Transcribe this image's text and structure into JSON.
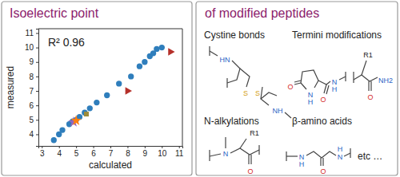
{
  "chart_data": {
    "type": "scatter",
    "title": "Isoelectric point",
    "x_label": "calculated",
    "y_label": "measured",
    "annotations": [
      "R² 0.96"
    ],
    "xlim": [
      2.8,
      11.2
    ],
    "xticks": [
      3,
      4,
      5,
      6,
      7,
      8,
      9,
      10,
      11
    ],
    "ylim": [
      3.2,
      11.3
    ],
    "yticks": [
      4,
      5,
      6,
      7,
      8,
      9,
      10,
      11
    ],
    "series": [
      {
        "color": "#2f7ebc",
        "marker": "circle",
        "x": [
          3.7,
          4.0,
          4.2,
          4.6,
          4.8,
          5.0,
          5.2,
          5.5,
          5.8,
          6.2,
          6.8,
          7.5,
          8.2,
          8.7,
          9.0,
          9.3,
          9.5,
          9.7,
          10.0
        ],
        "values": [
          3.6,
          4.0,
          4.3,
          4.7,
          4.9,
          5.0,
          5.2,
          5.5,
          5.8,
          6.2,
          6.7,
          7.5,
          8.0,
          8.7,
          9.0,
          9.4,
          9.6,
          9.9,
          10.0
        ]
      },
      {
        "color": "#b5302a",
        "marker": "triangle-right",
        "x": [
          8.0,
          10.5
        ],
        "values": [
          7.0,
          9.7
        ]
      },
      {
        "color": "#9467bd",
        "marker": "star",
        "x": [
          4.85
        ],
        "values": [
          4.85
        ]
      },
      {
        "color": "#ff7f0e",
        "marker": "star",
        "x": [
          5.0
        ],
        "values": [
          4.95
        ]
      },
      {
        "color": "#9c8b3b",
        "marker": "square",
        "x": [
          5.6
        ],
        "values": [
          5.4
        ]
      }
    ]
  },
  "panel": {
    "title": "of modified peptides",
    "structures": [
      {
        "title": "Cystine bonds",
        "atoms": [
          "HN",
          "S",
          "S",
          "NH"
        ]
      },
      {
        "title": "Termini modifications",
        "atoms": [
          "O",
          "N",
          "H",
          "O",
          "N",
          "H",
          "R1",
          "NH2",
          "O"
        ]
      },
      {
        "title": "N-alkylations",
        "atoms": [
          "N",
          "R1",
          "O"
        ]
      },
      {
        "title": "β-amino acids",
        "atoms": [
          "N",
          "H",
          "N",
          "H",
          "O"
        ]
      }
    ],
    "footer": "etc …"
  }
}
